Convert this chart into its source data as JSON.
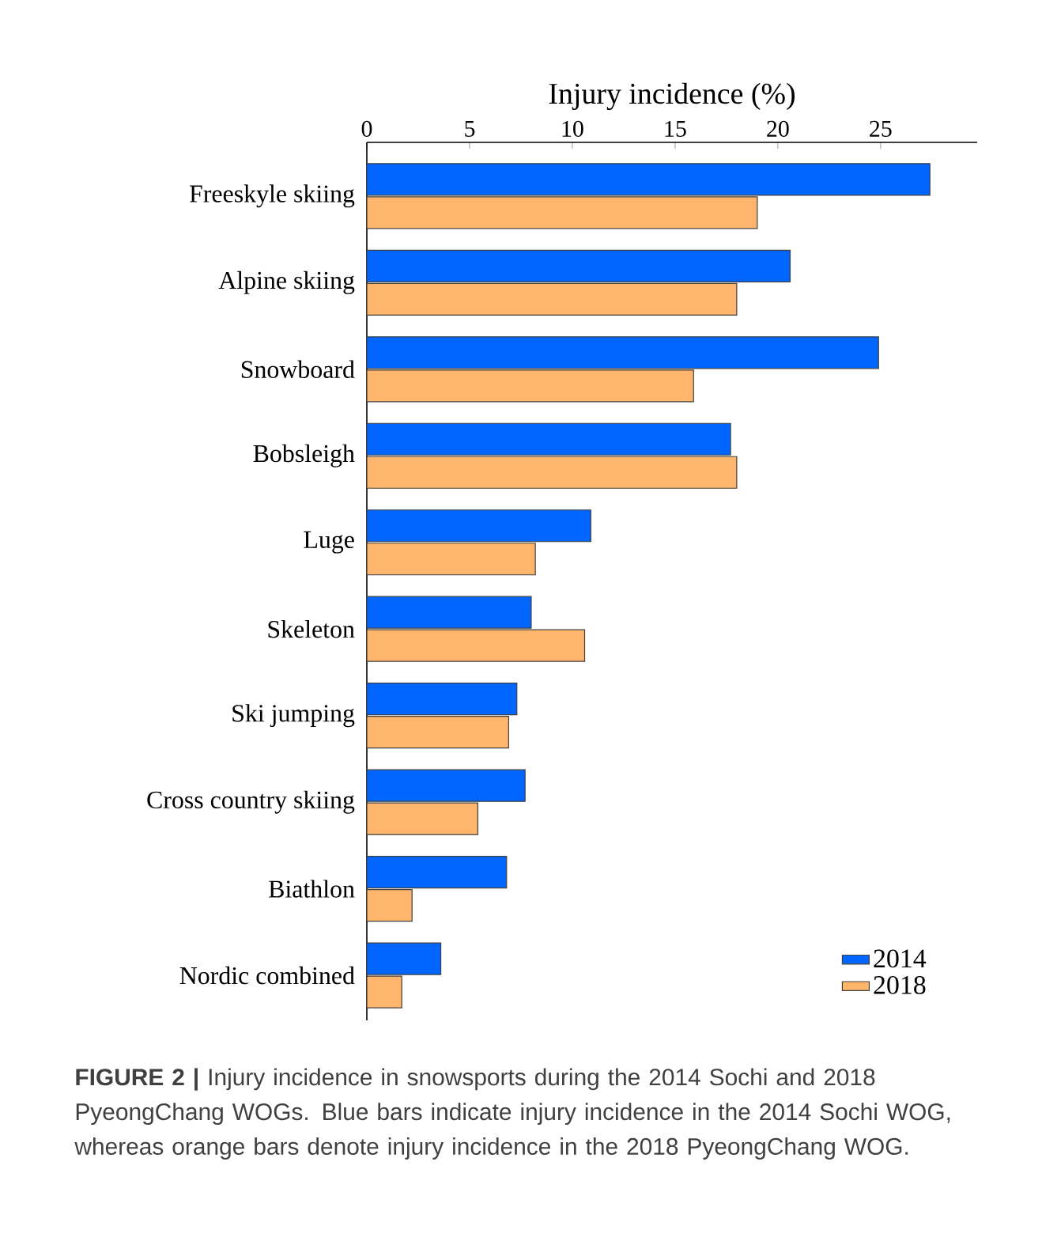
{
  "chart_data": {
    "type": "bar",
    "orientation": "horizontal",
    "xlabel": "Injury incidence (%)",
    "categories": [
      "Freeskyle skiing",
      "Alpine skiing",
      "Snowboard",
      "Bobsleigh",
      "Luge",
      "Skeleton",
      "Ski jumping",
      "Cross country skiing",
      "Biathlon",
      "Nordic combined"
    ],
    "series": [
      {
        "name": "2014",
        "color": "#0066ff",
        "values": [
          27.4,
          20.6,
          24.9,
          17.7,
          10.9,
          8.0,
          7.3,
          7.7,
          6.8,
          3.6
        ]
      },
      {
        "name": "2018",
        "color": "#ffb66c",
        "values": [
          19.0,
          18.0,
          15.9,
          18.0,
          8.2,
          10.6,
          6.9,
          5.4,
          2.2,
          1.7
        ]
      }
    ],
    "xlim": [
      0,
      29.7
    ],
    "xticks": [
      0,
      5,
      10,
      15,
      20,
      25
    ],
    "legend": "bottom right",
    "annotations": [
      "**FIGURE 2 |** Injury incidence in snowsports during the 2014 Sochi and 2018 PyeongChang WOGs. Blue bars indicate injury incidence in the 2014 Sochi WOG, whereas orange bars denote injury incidence in the 2018 PyeongChang WOG."
    ]
  }
}
